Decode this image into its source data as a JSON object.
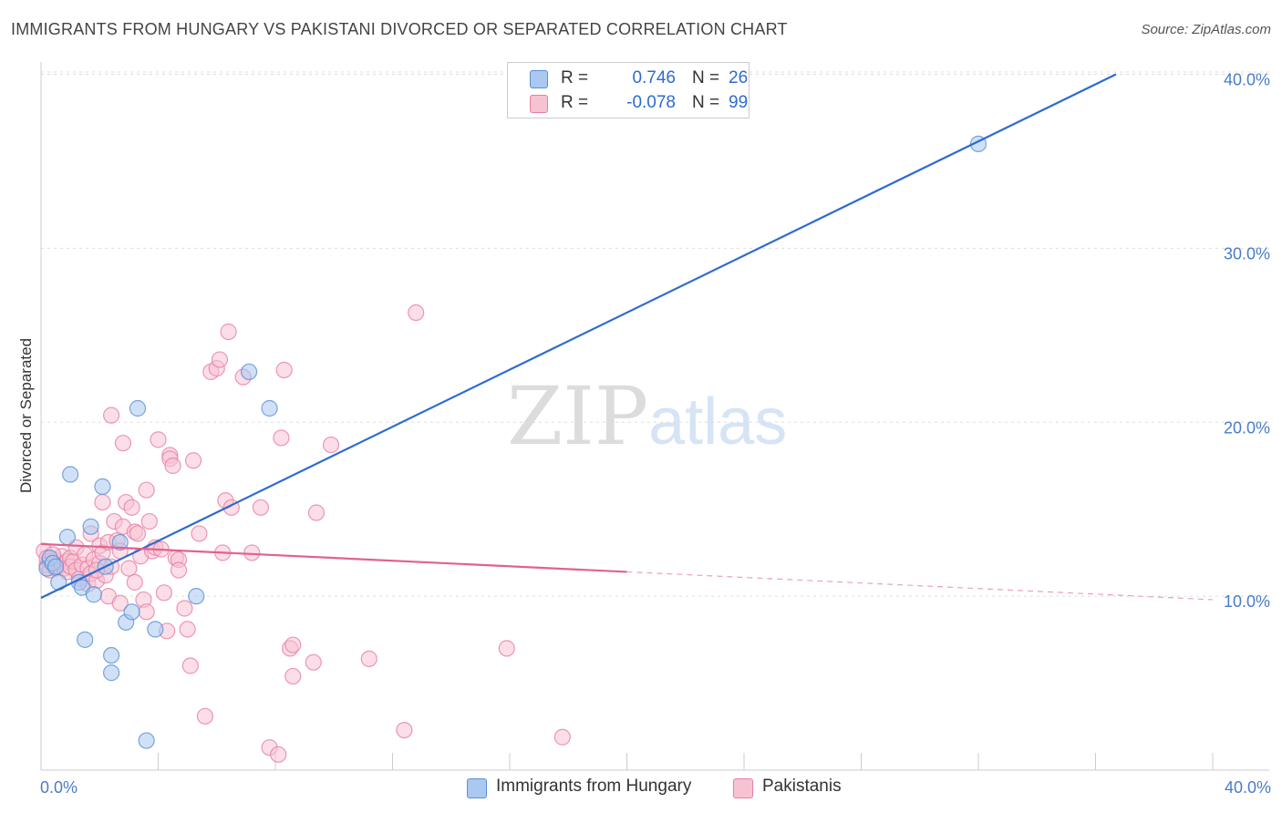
{
  "header": {
    "title": "IMMIGRANTS FROM HUNGARY VS PAKISTANI DIVORCED OR SEPARATED CORRELATION CHART",
    "source": "Source: ZipAtlas.com"
  },
  "watermark": {
    "zip": "ZIP",
    "atlas": "atlas"
  },
  "legend": {
    "rows": [
      {
        "r_label": "R =",
        "r_value": "0.746",
        "n_label": "N =",
        "n_value": "26",
        "color": "#aac8f0",
        "border": "#5b8fd6"
      },
      {
        "r_label": "R =",
        "r_value": "-0.078",
        "n_label": "N =",
        "n_value": "99",
        "color": "#f7c3d3",
        "border": "#e77fa2"
      }
    ]
  },
  "bottom_legend": [
    {
      "label": "Immigrants from Hungary",
      "color": "#aac8f0",
      "border": "#5b8fd6"
    },
    {
      "label": "Pakistanis",
      "color": "#f7c3d3",
      "border": "#e77fa2"
    }
  ],
  "axes": {
    "ylabel": "Divorced or Separated",
    "y_ticks": [
      "10.0%",
      "20.0%",
      "30.0%",
      "40.0%"
    ],
    "x_min_label": "0.0%",
    "x_max_label": "40.0%"
  },
  "chart_data": {
    "type": "scatter",
    "title": "IMMIGRANTS FROM HUNGARY VS PAKISTANI DIVORCED OR SEPARATED CORRELATION CHART",
    "xlabel": "",
    "ylabel": "Divorced or Separated",
    "xlim": [
      0,
      40
    ],
    "ylim": [
      0,
      40.5
    ],
    "y_tick_values": [
      10,
      20,
      30,
      40
    ],
    "grid": true,
    "legend_position": "top-center",
    "series": [
      {
        "name": "Immigrants from Hungary",
        "color": "#5b8fd6",
        "fill": "#aac8f0",
        "r": 0.746,
        "n": 26,
        "trend": {
          "x": [
            0,
            36.7
          ],
          "y": [
            9.9,
            40.0
          ],
          "solid_to": 36.7
        },
        "points": [
          [
            0.2,
            11.6
          ],
          [
            0.3,
            12.2
          ],
          [
            0.4,
            11.9
          ],
          [
            0.5,
            11.7
          ],
          [
            0.6,
            10.8
          ],
          [
            0.9,
            13.4
          ],
          [
            1.0,
            17.0
          ],
          [
            1.3,
            10.8
          ],
          [
            1.4,
            10.5
          ],
          [
            1.5,
            7.5
          ],
          [
            1.7,
            14.0
          ],
          [
            1.8,
            10.1
          ],
          [
            2.1,
            16.3
          ],
          [
            2.2,
            11.7
          ],
          [
            2.4,
            6.6
          ],
          [
            2.4,
            5.6
          ],
          [
            2.7,
            13.1
          ],
          [
            2.9,
            8.5
          ],
          [
            3.1,
            9.1
          ],
          [
            3.3,
            20.8
          ],
          [
            3.6,
            1.7
          ],
          [
            3.9,
            8.1
          ],
          [
            5.3,
            10.0
          ],
          [
            7.1,
            22.9
          ],
          [
            7.8,
            20.8
          ],
          [
            32.0,
            36.0
          ]
        ]
      },
      {
        "name": "Pakistanis",
        "color": "#e77fa2",
        "fill": "#f7c3d3",
        "r": -0.078,
        "n": 99,
        "trend": {
          "x": [
            0,
            40
          ],
          "y": [
            13.0,
            9.8
          ],
          "solid_to": 20.0
        },
        "points": [
          [
            0.1,
            12.6
          ],
          [
            0.2,
            11.8
          ],
          [
            0.2,
            12.2
          ],
          [
            0.3,
            11.5
          ],
          [
            0.3,
            12.0
          ],
          [
            0.4,
            11.9
          ],
          [
            0.5,
            11.6
          ],
          [
            0.5,
            12.1
          ],
          [
            0.6,
            11.7
          ],
          [
            0.7,
            11.8
          ],
          [
            0.7,
            12.3
          ],
          [
            0.8,
            11.6
          ],
          [
            0.9,
            12.0
          ],
          [
            0.9,
            11.4
          ],
          [
            1.0,
            12.2
          ],
          [
            1.0,
            11.7
          ],
          [
            1.1,
            12.0
          ],
          [
            1.2,
            11.5
          ],
          [
            1.2,
            12.8
          ],
          [
            1.3,
            11.0
          ],
          [
            1.4,
            11.8
          ],
          [
            1.5,
            12.4
          ],
          [
            1.6,
            10.7
          ],
          [
            1.6,
            11.6
          ],
          [
            1.7,
            11.3
          ],
          [
            1.7,
            13.6
          ],
          [
            1.8,
            12.1
          ],
          [
            1.9,
            10.9
          ],
          [
            2.0,
            11.9
          ],
          [
            2.0,
            12.9
          ],
          [
            2.1,
            15.4
          ],
          [
            2.1,
            12.5
          ],
          [
            2.2,
            11.2
          ],
          [
            2.3,
            13.1
          ],
          [
            2.3,
            10.0
          ],
          [
            2.4,
            11.7
          ],
          [
            2.4,
            20.4
          ],
          [
            2.5,
            14.3
          ],
          [
            2.6,
            13.2
          ],
          [
            2.7,
            12.6
          ],
          [
            2.7,
            9.6
          ],
          [
            2.8,
            14.0
          ],
          [
            2.8,
            18.8
          ],
          [
            2.9,
            15.4
          ],
          [
            3.0,
            11.6
          ],
          [
            3.1,
            15.1
          ],
          [
            3.2,
            13.7
          ],
          [
            3.2,
            10.8
          ],
          [
            3.3,
            13.6
          ],
          [
            3.4,
            12.3
          ],
          [
            3.5,
            9.8
          ],
          [
            3.6,
            9.1
          ],
          [
            3.6,
            16.1
          ],
          [
            3.7,
            14.3
          ],
          [
            3.8,
            12.6
          ],
          [
            3.9,
            12.8
          ],
          [
            4.0,
            19.0
          ],
          [
            4.1,
            12.7
          ],
          [
            4.2,
            10.2
          ],
          [
            4.3,
            8.0
          ],
          [
            4.4,
            18.1
          ],
          [
            4.4,
            17.9
          ],
          [
            4.5,
            17.5
          ],
          [
            4.6,
            12.2
          ],
          [
            4.7,
            12.1
          ],
          [
            4.7,
            11.5
          ],
          [
            4.9,
            9.3
          ],
          [
            5.0,
            8.1
          ],
          [
            5.1,
            6.0
          ],
          [
            5.2,
            17.8
          ],
          [
            5.4,
            13.6
          ],
          [
            5.6,
            3.1
          ],
          [
            5.8,
            22.9
          ],
          [
            6.0,
            23.1
          ],
          [
            6.1,
            23.6
          ],
          [
            6.2,
            12.5
          ],
          [
            6.3,
            15.5
          ],
          [
            6.4,
            25.2
          ],
          [
            6.5,
            15.1
          ],
          [
            6.9,
            22.6
          ],
          [
            7.2,
            12.5
          ],
          [
            7.5,
            15.1
          ],
          [
            7.8,
            1.3
          ],
          [
            8.1,
            0.9
          ],
          [
            8.2,
            19.1
          ],
          [
            8.3,
            23.0
          ],
          [
            8.5,
            7.0
          ],
          [
            8.6,
            7.2
          ],
          [
            8.6,
            5.4
          ],
          [
            9.3,
            6.2
          ],
          [
            9.4,
            14.8
          ],
          [
            9.9,
            18.7
          ],
          [
            11.2,
            6.4
          ],
          [
            12.4,
            2.3
          ],
          [
            12.8,
            26.3
          ],
          [
            15.9,
            7.0
          ],
          [
            17.8,
            1.9
          ],
          [
            1.9,
            11.5
          ],
          [
            0.4,
            12.4
          ]
        ]
      }
    ]
  }
}
